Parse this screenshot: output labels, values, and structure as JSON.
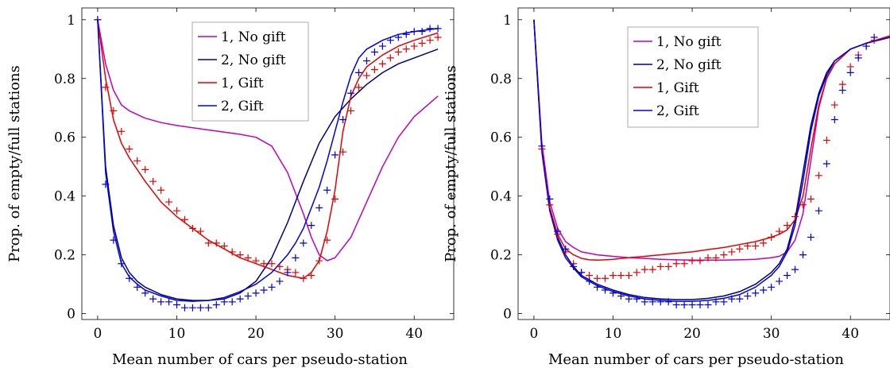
{
  "chart_data": [
    {
      "type": "line",
      "xlabel": "Mean number of cars per pseudo-station",
      "ylabel": "Prop. of empty/full stations",
      "xlim": [
        -2,
        45
      ],
      "ylim": [
        -0.02,
        1.04
      ],
      "xticks": [
        0,
        10,
        20,
        30,
        40
      ],
      "yticks": [
        0,
        0.2,
        0.4,
        0.6,
        0.8,
        1
      ],
      "xtick_labels": [
        "0",
        "10",
        "20",
        "30",
        "40"
      ],
      "ytick_labels": [
        "0",
        "0.2",
        "0.4",
        "0.6",
        "0.8",
        "1"
      ],
      "legend_position": "top-center",
      "series": [
        {
          "name": "1, No gift",
          "color": "#bf00bf",
          "style": "line",
          "x": [
            0,
            1,
            2,
            3,
            4,
            6,
            8,
            10,
            14,
            18,
            20,
            22,
            24,
            26,
            27,
            28,
            29,
            30,
            32,
            34,
            36,
            38,
            40,
            43
          ],
          "y": [
            1,
            0.85,
            0.76,
            0.71,
            0.69,
            0.665,
            0.65,
            0.64,
            0.625,
            0.61,
            0.6,
            0.57,
            0.48,
            0.34,
            0.26,
            0.2,
            0.18,
            0.19,
            0.26,
            0.38,
            0.5,
            0.6,
            0.67,
            0.74
          ]
        },
        {
          "name": "2, No gift",
          "color": "#00007f",
          "style": "line",
          "x": [
            0,
            1,
            2,
            3,
            4,
            5,
            6,
            8,
            10,
            12,
            14,
            16,
            18,
            20,
            22,
            24,
            26,
            28,
            30,
            32,
            34,
            36,
            38,
            40,
            43
          ],
          "y": [
            1,
            0.5,
            0.3,
            0.19,
            0.14,
            0.11,
            0.09,
            0.065,
            0.05,
            0.045,
            0.045,
            0.05,
            0.07,
            0.11,
            0.19,
            0.31,
            0.45,
            0.58,
            0.67,
            0.73,
            0.78,
            0.82,
            0.85,
            0.87,
            0.9
          ]
        },
        {
          "name": "1, Gift",
          "color": "#e60000",
          "style": "line",
          "x": [
            0,
            1,
            2,
            3,
            4,
            6,
            8,
            10,
            12,
            14,
            16,
            18,
            20,
            22,
            24,
            25,
            26,
            27,
            28,
            29,
            30,
            31,
            32,
            33,
            34,
            36,
            38,
            40,
            43
          ],
          "y": [
            1,
            0.8,
            0.66,
            0.58,
            0.53,
            0.45,
            0.38,
            0.33,
            0.29,
            0.25,
            0.22,
            0.19,
            0.17,
            0.15,
            0.13,
            0.125,
            0.12,
            0.14,
            0.18,
            0.28,
            0.42,
            0.62,
            0.74,
            0.8,
            0.84,
            0.88,
            0.91,
            0.93,
            0.955
          ]
        },
        {
          "name": "2, Gift",
          "color": "#0000e6",
          "style": "line",
          "x": [
            0,
            1,
            2,
            3,
            4,
            5,
            6,
            8,
            10,
            12,
            14,
            16,
            18,
            20,
            22,
            24,
            25,
            26,
            27,
            28,
            29,
            30,
            31,
            32,
            33,
            34,
            36,
            38,
            40,
            43
          ],
          "y": [
            1,
            0.48,
            0.28,
            0.17,
            0.125,
            0.1,
            0.08,
            0.06,
            0.045,
            0.042,
            0.045,
            0.055,
            0.075,
            0.1,
            0.14,
            0.2,
            0.24,
            0.29,
            0.36,
            0.43,
            0.52,
            0.62,
            0.72,
            0.81,
            0.87,
            0.9,
            0.93,
            0.95,
            0.96,
            0.97
          ]
        },
        {
          "name": "",
          "color": "#e60000",
          "style": "markers",
          "x": [
            0,
            1,
            2,
            3,
            4,
            5,
            6,
            7,
            8,
            9,
            10,
            11,
            12,
            13,
            14,
            15,
            16,
            17,
            18,
            19,
            20,
            21,
            22,
            23,
            24,
            25,
            26,
            27,
            28,
            29,
            30,
            31,
            32,
            33,
            34,
            35,
            36,
            37,
            38,
            39,
            40,
            41,
            42,
            43
          ],
          "y": [
            1,
            0.77,
            0.69,
            0.62,
            0.56,
            0.52,
            0.49,
            0.45,
            0.42,
            0.38,
            0.35,
            0.32,
            0.29,
            0.28,
            0.24,
            0.24,
            0.23,
            0.21,
            0.2,
            0.19,
            0.18,
            0.17,
            0.17,
            0.16,
            0.15,
            0.14,
            0.12,
            0.13,
            0.18,
            0.25,
            0.39,
            0.55,
            0.69,
            0.77,
            0.81,
            0.83,
            0.85,
            0.87,
            0.89,
            0.9,
            0.91,
            0.92,
            0.93,
            0.94
          ]
        },
        {
          "name": "",
          "color": "#0000e6",
          "style": "markers",
          "x": [
            0,
            1,
            2,
            3,
            4,
            5,
            6,
            7,
            8,
            9,
            10,
            11,
            12,
            13,
            14,
            15,
            16,
            17,
            18,
            19,
            20,
            21,
            22,
            23,
            24,
            25,
            26,
            27,
            28,
            29,
            30,
            31,
            32,
            33,
            34,
            35,
            36,
            37,
            38,
            39,
            40,
            41,
            42,
            43
          ],
          "y": [
            1,
            0.44,
            0.25,
            0.17,
            0.12,
            0.09,
            0.07,
            0.05,
            0.04,
            0.04,
            0.03,
            0.02,
            0.02,
            0.02,
            0.02,
            0.03,
            0.04,
            0.04,
            0.05,
            0.06,
            0.07,
            0.08,
            0.09,
            0.11,
            0.14,
            0.19,
            0.24,
            0.3,
            0.36,
            0.42,
            0.54,
            0.66,
            0.75,
            0.82,
            0.86,
            0.89,
            0.91,
            0.93,
            0.94,
            0.95,
            0.96,
            0.96,
            0.97,
            0.97
          ]
        }
      ]
    },
    {
      "type": "line",
      "xlabel": "Mean number of cars per pseudo-station",
      "ylabel": "Prop. of empty/full stations",
      "xlim": [
        -2,
        45
      ],
      "ylim": [
        -0.02,
        1.04
      ],
      "xticks": [
        0,
        10,
        20,
        30,
        40
      ],
      "yticks": [
        0,
        0.2,
        0.4,
        0.6,
        0.8,
        1
      ],
      "xtick_labels": [
        "0",
        "10",
        "20",
        "30",
        "40"
      ],
      "ytick_labels": [
        "0",
        "0.2",
        "0.4",
        "0.6",
        "0.8",
        "1"
      ],
      "legend_position": "top-left",
      "series": [
        {
          "name": "1, No gift",
          "color": "#bf00bf",
          "style": "line",
          "x": [
            0,
            1,
            2,
            3,
            4,
            5,
            6,
            8,
            10,
            12,
            14,
            16,
            18,
            20,
            22,
            24,
            26,
            28,
            30,
            31,
            32,
            33,
            34,
            35,
            36,
            37,
            38,
            40,
            42,
            45
          ],
          "y": [
            1,
            0.58,
            0.38,
            0.29,
            0.245,
            0.225,
            0.21,
            0.2,
            0.195,
            0.19,
            0.188,
            0.185,
            0.183,
            0.182,
            0.182,
            0.182,
            0.183,
            0.185,
            0.19,
            0.195,
            0.21,
            0.25,
            0.34,
            0.52,
            0.7,
            0.8,
            0.85,
            0.9,
            0.92,
            0.945
          ]
        },
        {
          "name": "2, No gift",
          "color": "#00007f",
          "style": "line",
          "x": [
            0,
            1,
            2,
            3,
            4,
            5,
            6,
            8,
            10,
            12,
            14,
            16,
            18,
            20,
            22,
            24,
            26,
            28,
            30,
            31,
            32,
            33,
            34,
            35,
            36,
            37,
            38,
            40,
            42,
            45
          ],
          "y": [
            1,
            0.56,
            0.36,
            0.26,
            0.2,
            0.16,
            0.13,
            0.1,
            0.08,
            0.065,
            0.055,
            0.05,
            0.048,
            0.048,
            0.052,
            0.06,
            0.075,
            0.1,
            0.14,
            0.17,
            0.22,
            0.32,
            0.48,
            0.64,
            0.75,
            0.82,
            0.86,
            0.9,
            0.92,
            0.94
          ]
        },
        {
          "name": "1, Gift",
          "color": "#e60000",
          "style": "line",
          "x": [
            0,
            1,
            2,
            3,
            4,
            5,
            6,
            7,
            8,
            9,
            10,
            12,
            14,
            16,
            18,
            20,
            22,
            24,
            26,
            28,
            30,
            31,
            32,
            33,
            34,
            35,
            36,
            37,
            38,
            40,
            42,
            45
          ],
          "y": [
            1,
            0.56,
            0.36,
            0.27,
            0.22,
            0.2,
            0.188,
            0.183,
            0.182,
            0.183,
            0.185,
            0.19,
            0.195,
            0.2,
            0.205,
            0.21,
            0.218,
            0.225,
            0.235,
            0.245,
            0.26,
            0.27,
            0.285,
            0.32,
            0.4,
            0.56,
            0.71,
            0.8,
            0.85,
            0.9,
            0.92,
            0.945
          ]
        },
        {
          "name": "2, Gift",
          "color": "#0000e6",
          "style": "line",
          "x": [
            0,
            1,
            2,
            3,
            4,
            5,
            6,
            8,
            10,
            12,
            14,
            16,
            18,
            20,
            22,
            24,
            26,
            28,
            30,
            31,
            32,
            33,
            34,
            35,
            36,
            37,
            38,
            40,
            42,
            45
          ],
          "y": [
            1,
            0.55,
            0.35,
            0.25,
            0.19,
            0.155,
            0.125,
            0.095,
            0.075,
            0.06,
            0.05,
            0.045,
            0.042,
            0.042,
            0.045,
            0.052,
            0.065,
            0.09,
            0.13,
            0.16,
            0.21,
            0.3,
            0.45,
            0.62,
            0.74,
            0.81,
            0.86,
            0.9,
            0.92,
            0.94
          ]
        },
        {
          "name": "",
          "color": "#e60000",
          "style": "markers",
          "x": [
            1,
            2,
            3,
            4,
            5,
            6,
            7,
            8,
            9,
            10,
            11,
            12,
            13,
            14,
            15,
            16,
            17,
            18,
            19,
            20,
            21,
            22,
            23,
            24,
            25,
            26,
            27,
            28,
            29,
            30,
            31,
            32,
            33,
            34,
            35,
            36,
            37,
            38,
            39,
            40,
            41,
            42,
            43
          ],
          "y": [
            0.56,
            0.37,
            0.27,
            0.21,
            0.17,
            0.14,
            0.13,
            0.12,
            0.12,
            0.13,
            0.13,
            0.13,
            0.14,
            0.15,
            0.15,
            0.16,
            0.16,
            0.17,
            0.17,
            0.18,
            0.18,
            0.19,
            0.19,
            0.2,
            0.21,
            0.22,
            0.23,
            0.23,
            0.24,
            0.26,
            0.28,
            0.3,
            0.33,
            0.37,
            0.39,
            0.47,
            0.59,
            0.71,
            0.78,
            0.84,
            0.88,
            0.91,
            0.93
          ]
        },
        {
          "name": "",
          "color": "#0000e6",
          "style": "markers",
          "x": [
            1,
            2,
            3,
            4,
            5,
            6,
            7,
            8,
            9,
            10,
            11,
            12,
            13,
            14,
            15,
            16,
            17,
            18,
            19,
            20,
            21,
            22,
            23,
            24,
            25,
            26,
            27,
            28,
            29,
            30,
            31,
            32,
            33,
            34,
            35,
            36,
            37,
            38,
            39,
            40,
            41,
            42,
            43
          ],
          "y": [
            0.57,
            0.39,
            0.28,
            0.22,
            0.16,
            0.14,
            0.11,
            0.09,
            0.08,
            0.07,
            0.06,
            0.05,
            0.05,
            0.04,
            0.04,
            0.04,
            0.04,
            0.03,
            0.03,
            0.03,
            0.03,
            0.03,
            0.04,
            0.04,
            0.05,
            0.05,
            0.06,
            0.07,
            0.08,
            0.09,
            0.11,
            0.13,
            0.15,
            0.2,
            0.26,
            0.35,
            0.51,
            0.66,
            0.76,
            0.82,
            0.87,
            0.91,
            0.94
          ]
        }
      ]
    }
  ]
}
